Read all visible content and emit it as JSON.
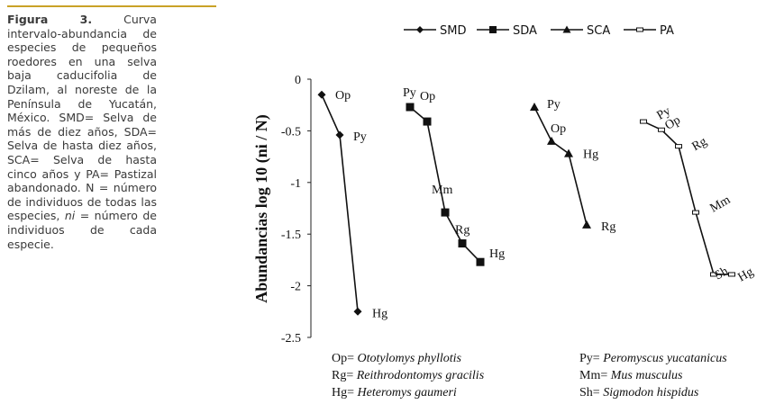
{
  "caption": {
    "label": "Figura 3.",
    "text_a": "Curva intervalo-abundancia de especies de pequeños roedores en una selva baja caducifolia de Dzilam, al noreste de la Península de Yucatán, México. SMD= Selva de más de diez años, SDA= Selva de hasta diez años, SCA= Selva de hasta cinco años y PA= Pastizal abandonado. N = número de individuos de todas las especies,",
    "ni": "ni",
    "text_b": "= número de individuos de cada especie."
  },
  "legend": {
    "items": [
      {
        "label": "SMD",
        "marker": "diamond"
      },
      {
        "label": "SDA",
        "marker": "square"
      },
      {
        "label": "SCA",
        "marker": "triangle"
      },
      {
        "label": "PA",
        "marker": "dash"
      }
    ]
  },
  "chart_data": {
    "type": "line",
    "title": "",
    "xlabel": "",
    "ylabel": "Abundancias log 10 (ni / N)",
    "ylim": [
      -2.5,
      0
    ],
    "yticks": [
      "0",
      "-0.5",
      "-1",
      "-1.5",
      "-2",
      "-2.5"
    ],
    "ytick_values": [
      0,
      -0.5,
      -1,
      -1.5,
      -2,
      -2.5
    ],
    "grid": false,
    "legend_position": "top",
    "series": [
      {
        "name": "SMD",
        "marker": "diamond",
        "points": [
          {
            "rank": 1,
            "y": -0.15,
            "label": "Op"
          },
          {
            "rank": 2,
            "y": -0.54,
            "label": "Py"
          },
          {
            "rank": 3,
            "y": -2.25,
            "label": "Hg"
          }
        ]
      },
      {
        "name": "SDA",
        "marker": "square",
        "points": [
          {
            "rank": 1,
            "y": -0.27,
            "label": "Py"
          },
          {
            "rank": 2,
            "y": -0.41,
            "label": "Op"
          },
          {
            "rank": 3,
            "y": -1.29,
            "label": "Mm"
          },
          {
            "rank": 4,
            "y": -1.59,
            "label": "Rg"
          },
          {
            "rank": 5,
            "y": -1.77,
            "label": "Hg"
          }
        ]
      },
      {
        "name": "SCA",
        "marker": "triangle",
        "points": [
          {
            "rank": 1,
            "y": -0.27,
            "label": "Py"
          },
          {
            "rank": 2,
            "y": -0.6,
            "label": "Op"
          },
          {
            "rank": 3,
            "y": -0.72,
            "label": "Hg"
          },
          {
            "rank": 4,
            "y": -1.41,
            "label": "Rg"
          }
        ]
      },
      {
        "name": "PA",
        "marker": "dash",
        "points": [
          {
            "rank": 1,
            "y": -0.41,
            "label": "Py"
          },
          {
            "rank": 2,
            "y": -0.49,
            "label": "Op"
          },
          {
            "rank": 3,
            "y": -0.65,
            "label": "Rg"
          },
          {
            "rank": 4,
            "y": -1.29,
            "label": "Mm"
          },
          {
            "rank": 5,
            "y": -1.89,
            "label": "Sh"
          },
          {
            "rank": 6,
            "y": -1.89,
            "label": "Hg"
          }
        ]
      }
    ]
  },
  "species_key": {
    "left": [
      {
        "code": "Op=",
        "name": "Ototylomys phyllotis"
      },
      {
        "code": "Rg=",
        "name": "Reithrodontomys gracilis"
      },
      {
        "code": "Hg=",
        "name": "Heteromys gaumeri"
      }
    ],
    "right": [
      {
        "code": "Py=",
        "name": "Peromyscus yucatanicus"
      },
      {
        "code": "Mm=",
        "name": "Mus musculus"
      },
      {
        "code": "Sh=",
        "name": "Sigmodon hispidus"
      }
    ]
  }
}
